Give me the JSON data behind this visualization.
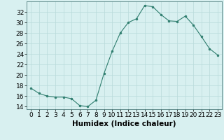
{
  "x": [
    0,
    1,
    2,
    3,
    4,
    5,
    6,
    7,
    8,
    9,
    10,
    11,
    12,
    13,
    14,
    15,
    16,
    17,
    18,
    19,
    20,
    21,
    22,
    23
  ],
  "y": [
    17.5,
    16.5,
    16.0,
    15.8,
    15.8,
    15.5,
    14.2,
    14.0,
    15.2,
    20.3,
    24.5,
    28.0,
    30.0,
    30.7,
    33.2,
    33.0,
    31.5,
    30.3,
    30.2,
    31.2,
    29.5,
    27.3,
    25.0,
    23.8
  ],
  "line_color": "#2e7d6e",
  "marker": "o",
  "marker_size": 2,
  "bg_color": "#d8f0f0",
  "grid_color": "#b8dada",
  "xlabel": "Humidex (Indice chaleur)",
  "ylim": [
    13.5,
    34
  ],
  "xlim": [
    -0.5,
    23.5
  ],
  "yticks": [
    14,
    16,
    18,
    20,
    22,
    24,
    26,
    28,
    30,
    32
  ],
  "xtick_positions": [
    0,
    1,
    2,
    3,
    4,
    5,
    6,
    7,
    8,
    9,
    10,
    11,
    12,
    13,
    14,
    15,
    16,
    17,
    18,
    19,
    20,
    21,
    22,
    23
  ],
  "xtick_labels": [
    "0",
    "1",
    "2",
    "3",
    "4",
    "5",
    "6",
    "7",
    "8",
    "9",
    "10",
    "11",
    "12",
    "13",
    "14",
    "15",
    "16",
    "17",
    "18",
    "19",
    "20",
    "21",
    "22",
    "23"
  ],
  "tick_fontsize": 6.5,
  "xlabel_fontsize": 7.5
}
